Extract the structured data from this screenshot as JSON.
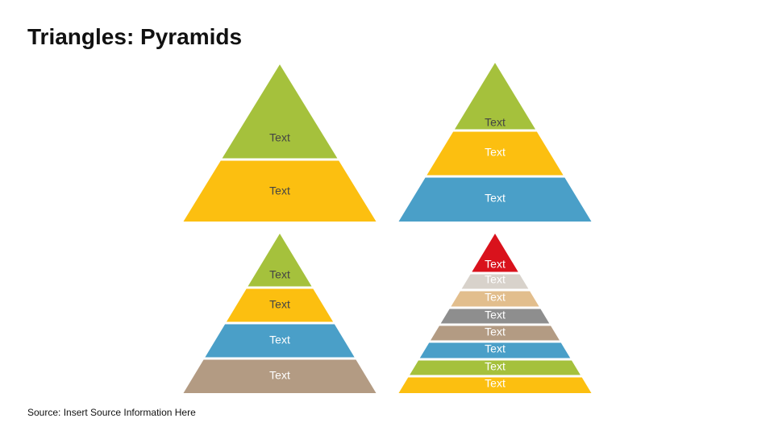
{
  "slide": {
    "title": "Triangles: Pyramids",
    "source": "Source: Insert Source Information Here"
  },
  "colors": {
    "green": "#a5c13c",
    "yellow": "#fcbf10",
    "blue": "#4a9fc8",
    "tan": "#b39b83",
    "red": "#d9121c",
    "light_gray": "#d8d2cb",
    "peach": "#e2be8d",
    "gray": "#8e8e8e"
  },
  "pyramids": [
    {
      "name": "pyramid-two-level",
      "levels": [
        {
          "label": "Text",
          "color": "#a5c13c",
          "text_color": "#444444"
        },
        {
          "label": "Text",
          "color": "#fcbf10",
          "text_color": "#444444"
        }
      ]
    },
    {
      "name": "pyramid-three-level",
      "levels": [
        {
          "label": "Text",
          "color": "#a5c13c",
          "text_color": "#444444"
        },
        {
          "label": "Text",
          "color": "#fcbf10",
          "text_color": "#ffffff"
        },
        {
          "label": "Text",
          "color": "#4a9fc8",
          "text_color": "#ffffff"
        }
      ]
    },
    {
      "name": "pyramid-four-level",
      "levels": [
        {
          "label": "Text",
          "color": "#a5c13c",
          "text_color": "#444444"
        },
        {
          "label": "Text",
          "color": "#fcbf10",
          "text_color": "#444444"
        },
        {
          "label": "Text",
          "color": "#4a9fc8",
          "text_color": "#ffffff"
        },
        {
          "label": "Text",
          "color": "#b39b83",
          "text_color": "#ffffff"
        }
      ]
    },
    {
      "name": "pyramid-eight-level",
      "levels": [
        {
          "label": "Text",
          "color": "#d9121c",
          "text_color": "#ffffff"
        },
        {
          "label": "Text",
          "color": "#d8d2cb",
          "text_color": "#ffffff"
        },
        {
          "label": "Text",
          "color": "#e2be8d",
          "text_color": "#ffffff"
        },
        {
          "label": "Text",
          "color": "#8e8e8e",
          "text_color": "#ffffff"
        },
        {
          "label": "Text",
          "color": "#b39b83",
          "text_color": "#ffffff"
        },
        {
          "label": "Text",
          "color": "#4a9fc8",
          "text_color": "#ffffff"
        },
        {
          "label": "Text",
          "color": "#a5c13c",
          "text_color": "#ffffff"
        },
        {
          "label": "Text",
          "color": "#fcbf10",
          "text_color": "#ffffff"
        }
      ]
    }
  ]
}
